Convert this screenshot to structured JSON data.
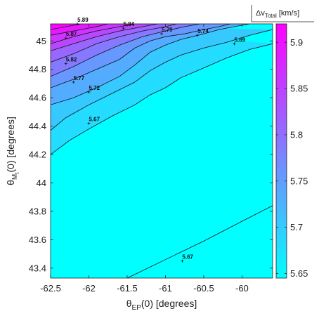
{
  "chart_data": {
    "type": "heatmap",
    "subtype": "filled-contour",
    "xlabel": {
      "main": "θ",
      "sub": "EP",
      "rest": "(0) [degrees]"
    },
    "ylabel": {
      "main": "θ",
      "sub": "M",
      "subsub": "t",
      "rest": "(0) [degrees]"
    },
    "xlim": [
      -62.5,
      -59.6
    ],
    "ylim": [
      43.33,
      45.12
    ],
    "x_ticks": [
      -62.5,
      -62,
      -61.5,
      -61,
      -60.5,
      -60
    ],
    "x_tick_labels": [
      "-62.5",
      "-62",
      "-61.5",
      "-61",
      "-60.5",
      "-60"
    ],
    "y_ticks": [
      43.4,
      43.6,
      43.8,
      44.0,
      44.2,
      44.4,
      44.6,
      44.8,
      45.0
    ],
    "y_tick_labels": [
      "43.4",
      "43.6",
      "43.8",
      "44",
      "44.2",
      "44.4",
      "44.6",
      "44.8",
      "45"
    ],
    "colorbar": {
      "title": {
        "main": "Δv",
        "sub": "Total",
        "rest": " [km/s]"
      },
      "range": [
        5.645,
        5.92
      ],
      "ticks": [
        5.65,
        5.7,
        5.75,
        5.8,
        5.85,
        5.9
      ],
      "tick_labels": [
        "5.65",
        "5.7",
        "5.75",
        "5.8",
        "5.85",
        "5.9"
      ],
      "colormap": "cool",
      "color_low": "#00ffff",
      "color_high": "#ff00ff"
    },
    "contours": [
      {
        "level": 5.67,
        "label": "5.67",
        "label_at": [
          -60.78,
          43.45
        ],
        "points": [
          [
            -61.5,
            43.33
          ],
          [
            -61,
            43.46
          ],
          [
            -60.5,
            43.59
          ],
          [
            -60,
            43.73
          ],
          [
            -59.6,
            43.84
          ]
        ]
      },
      {
        "level": 5.67,
        "label": "5.67",
        "label_at": [
          -62.0,
          44.42
        ],
        "points": [
          [
            -62.5,
            44.2
          ],
          [
            -62.25,
            44.3
          ],
          [
            -62.0,
            44.38
          ],
          [
            -61.7,
            44.47
          ],
          [
            -61.4,
            44.55
          ],
          [
            -61.2,
            44.62
          ],
          [
            -61.0,
            44.67
          ],
          [
            -60.8,
            44.74
          ],
          [
            -60.5,
            44.81
          ],
          [
            -60.2,
            44.88
          ],
          [
            -59.9,
            44.94
          ],
          [
            -59.6,
            44.98
          ]
        ]
      },
      {
        "level": 5.69,
        "label": "5.69",
        "label_at": [
          -60.1,
          44.98
        ],
        "points": [
          [
            -62.5,
            44.37
          ],
          [
            -62.3,
            44.46
          ],
          [
            -62.0,
            44.55
          ],
          [
            -61.7,
            44.63
          ],
          [
            -61.4,
            44.71
          ],
          [
            -61.2,
            44.79
          ],
          [
            -61.0,
            44.85
          ],
          [
            -60.8,
            44.9
          ],
          [
            -60.5,
            44.95
          ],
          [
            -60.2,
            44.99
          ],
          [
            -59.9,
            45.04
          ],
          [
            -59.6,
            45.08
          ]
        ]
      },
      {
        "level": 5.72,
        "label": "5.72",
        "label_at": [
          -62.0,
          44.64
        ],
        "points": [
          [
            -62.5,
            44.55
          ],
          [
            -62.2,
            44.6
          ],
          [
            -61.9,
            44.67
          ],
          [
            -61.6,
            44.75
          ],
          [
            -61.4,
            44.83
          ],
          [
            -61.2,
            44.92
          ],
          [
            -61.0,
            44.97
          ],
          [
            -60.8,
            45.01
          ],
          [
            -60.5,
            45.05
          ],
          [
            -60.3,
            45.08
          ],
          [
            -60.1,
            45.1
          ],
          [
            -59.9,
            45.12
          ]
        ]
      },
      {
        "level": 5.74,
        "label": "5.74",
        "label_at": [
          -60.58,
          45.04
        ],
        "points": [
          [
            -62.5,
            44.67
          ],
          [
            -62.2,
            44.73
          ],
          [
            -61.9,
            44.8
          ],
          [
            -61.6,
            44.87
          ],
          [
            -61.4,
            44.95
          ],
          [
            -61.2,
            45.0
          ],
          [
            -61.0,
            45.03
          ],
          [
            -60.75,
            45.05
          ],
          [
            -60.5,
            45.08
          ],
          [
            -60.3,
            45.1
          ],
          [
            -60.15,
            45.12
          ]
        ]
      },
      {
        "level": 5.77,
        "label": "5.77",
        "label_at": [
          -62.2,
          44.71
        ],
        "points": [
          [
            -62.5,
            44.75
          ],
          [
            -62.2,
            44.82
          ],
          [
            -61.9,
            44.9
          ],
          [
            -61.6,
            44.97
          ],
          [
            -61.3,
            45.03
          ],
          [
            -61.0,
            45.07
          ],
          [
            -60.75,
            45.1
          ],
          [
            -60.55,
            45.12
          ]
        ]
      },
      {
        "level": 5.79,
        "label": "5.79",
        "label_at": [
          -61.05,
          45.05
        ],
        "points": [
          [
            -62.5,
            44.85
          ],
          [
            -62.2,
            44.91
          ],
          [
            -61.9,
            44.98
          ],
          [
            -61.6,
            45.03
          ],
          [
            -61.3,
            45.07
          ],
          [
            -61.0,
            45.1
          ],
          [
            -60.85,
            45.12
          ]
        ]
      },
      {
        "level": 5.82,
        "label": "5.82",
        "label_at": [
          -62.3,
          44.84
        ],
        "points": [
          [
            -62.5,
            44.93
          ],
          [
            -62.2,
            44.98
          ],
          [
            -61.9,
            45.03
          ],
          [
            -61.6,
            45.07
          ],
          [
            -61.3,
            45.1
          ],
          [
            -61.1,
            45.12
          ]
        ]
      },
      {
        "level": 5.84,
        "label": "5.84",
        "label_at": [
          -61.55,
          45.09
        ],
        "points": [
          [
            -62.5,
            44.98
          ],
          [
            -62.2,
            45.03
          ],
          [
            -61.9,
            45.07
          ],
          [
            -61.6,
            45.1
          ],
          [
            -61.4,
            45.12
          ]
        ]
      },
      {
        "level": 5.87,
        "label": "5.87",
        "label_at": [
          -62.3,
          45.02
        ],
        "points": [
          [
            -62.5,
            45.04
          ],
          [
            -62.2,
            45.07
          ],
          [
            -61.9,
            45.1
          ],
          [
            -61.75,
            45.12
          ]
        ]
      },
      {
        "level": 5.89,
        "label": "5.89",
        "label_at": [
          -62.15,
          45.12
        ],
        "points": [
          [
            -62.5,
            45.08
          ],
          [
            -62.3,
            45.1
          ],
          [
            -62.1,
            45.12
          ]
        ]
      }
    ]
  }
}
